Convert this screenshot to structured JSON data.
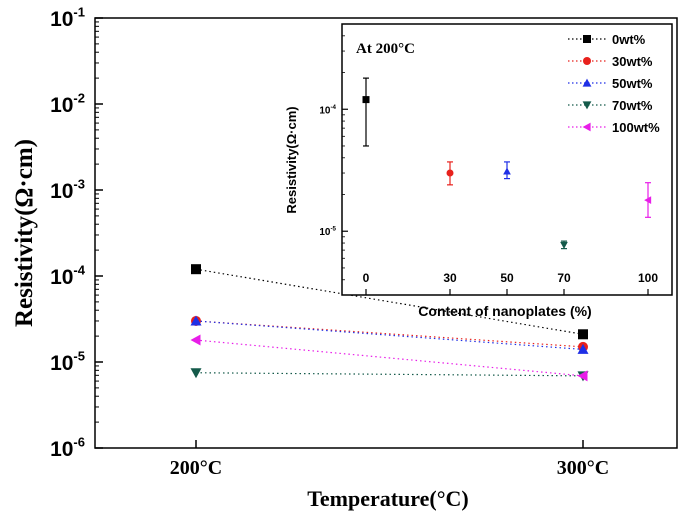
{
  "chart_data": [
    {
      "type": "scatter",
      "ylabel": "Resistivity(Ω·cm)",
      "xlabel": "Temperature(°C)",
      "categories": [
        "200°C",
        "300°C"
      ],
      "y_scale": "log",
      "ylim": [
        1e-06,
        0.1
      ],
      "y_ticks": [
        {
          "value": 1e-06,
          "base": "10",
          "exp": "-6"
        },
        {
          "value": 1e-05,
          "base": "10",
          "exp": "-5"
        },
        {
          "value": 0.0001,
          "base": "10",
          "exp": "-4"
        },
        {
          "value": 0.001,
          "base": "10",
          "exp": "-3"
        },
        {
          "value": 0.01,
          "base": "10",
          "exp": "-2"
        },
        {
          "value": 0.1,
          "base": "10",
          "exp": "-1"
        }
      ],
      "series": [
        {
          "name": "0wt%",
          "color": "#000000",
          "marker": "square",
          "values": [
            0.00012,
            2.1e-05
          ]
        },
        {
          "name": "30wt%",
          "color": "#e8211c",
          "marker": "circle",
          "values": [
            3e-05,
            1.5e-05
          ]
        },
        {
          "name": "50wt%",
          "color": "#1f2fe6",
          "marker": "triangle-up",
          "values": [
            3e-05,
            1.4e-05
          ]
        },
        {
          "name": "70wt%",
          "color": "#145a4a",
          "marker": "triangle-down",
          "values": [
            7.5e-06,
            6.9e-06
          ]
        },
        {
          "name": "100wt%",
          "color": "#e81ee8",
          "marker": "triangle-left",
          "values": [
            1.8e-05,
            6.9e-06
          ]
        }
      ],
      "legend_position": "top-right",
      "grid": false
    },
    {
      "type": "scatter",
      "annotation": "At 200°C",
      "xlabel": "Content of nanoplates (%)",
      "ylabel": "Resistivity(Ω·cm)",
      "x_ticks": [
        "0",
        "30",
        "50",
        "70",
        "100"
      ],
      "y_scale": "log",
      "ylim": [
        3e-06,
        0.0005
      ],
      "y_ticks": [
        {
          "value": 0.0001,
          "base": "10",
          "exp": "-4"
        },
        {
          "value": 1e-05,
          "base": "10",
          "exp": "-5"
        }
      ],
      "points": [
        {
          "x": 0,
          "y": 0.00012,
          "err_low": 5e-05,
          "err_high": 0.00018,
          "series": "0wt%"
        },
        {
          "x": 30,
          "y": 3e-05,
          "err_low": 2.4e-05,
          "err_high": 3.7e-05,
          "series": "30wt%"
        },
        {
          "x": 50,
          "y": 3.1e-05,
          "err_low": 2.7e-05,
          "err_high": 3.7e-05,
          "series": "50wt%"
        },
        {
          "x": 70,
          "y": 7.7e-06,
          "err_low": 7.2e-06,
          "err_high": 8.3e-06,
          "series": "70wt%"
        },
        {
          "x": 100,
          "y": 1.8e-05,
          "err_low": 1.3e-05,
          "err_high": 2.5e-05,
          "series": "100wt%"
        }
      ],
      "grid": false
    }
  ]
}
